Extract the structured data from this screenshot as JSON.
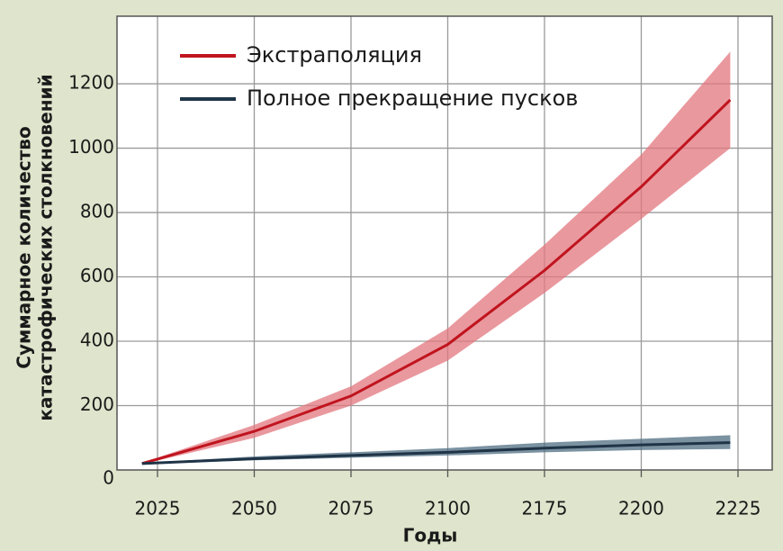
{
  "chart_data": {
    "type": "line",
    "ylabel": [
      "Суммарное количество",
      "катастрофических столкновений"
    ],
    "xlabel": "Годы",
    "xticks": [
      2025,
      2050,
      2075,
      2100,
      2175,
      2200,
      2225
    ],
    "ylim": [
      0,
      1410
    ],
    "yticks": [
      0,
      200,
      400,
      600,
      800,
      1000,
      1200
    ],
    "grid": true,
    "legend": "upper left",
    "x": [
      2021,
      2050,
      2075,
      2100,
      2175,
      2200,
      2223
    ],
    "series": [
      {
        "name": "Экстраполяция",
        "color": "#c0141e",
        "band_color": "#e2767d",
        "values": [
          20,
          120,
          230,
          390,
          620,
          880,
          1150
        ],
        "upper": [
          22,
          140,
          260,
          440,
          700,
          980,
          1300
        ],
        "lower": [
          18,
          100,
          200,
          340,
          550,
          780,
          1000
        ]
      },
      {
        "name": "Полное прекращение пусков",
        "color": "#1f3447",
        "band_color": "#4f6e82",
        "values": [
          20,
          35,
          45,
          55,
          68,
          78,
          85
        ],
        "upper": [
          22,
          42,
          55,
          68,
          85,
          97,
          108
        ],
        "lower": [
          18,
          30,
          38,
          45,
          55,
          62,
          65
        ]
      }
    ]
  }
}
